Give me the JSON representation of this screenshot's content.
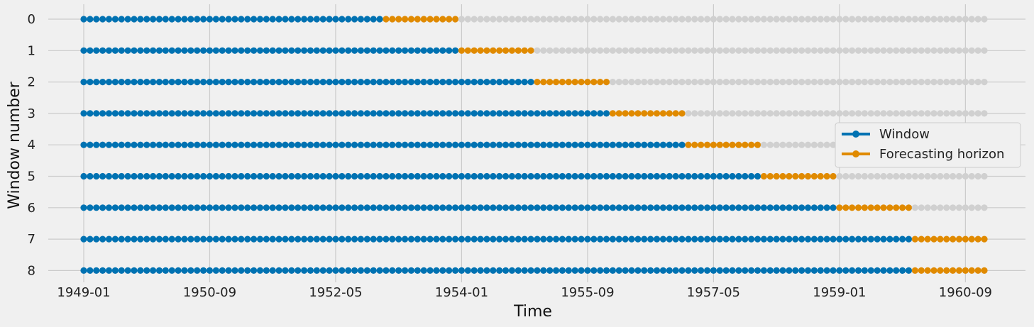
{
  "chart_data": {
    "type": "scatter",
    "title": "",
    "xlabel": "Time",
    "ylabel": "Window number",
    "x_ticks": [
      "1949-01",
      "1950-09",
      "1952-05",
      "1954-01",
      "1955-09",
      "1957-05",
      "1959-01",
      "1960-09"
    ],
    "y_ticks": [
      "0",
      "1",
      "2",
      "3",
      "4",
      "5",
      "6",
      "7",
      "8"
    ],
    "x_range": [
      "1949-01",
      "1960-12"
    ],
    "y_inverted": true,
    "grid": true,
    "legend_position": "center-right",
    "total_points": 144,
    "series": [
      {
        "name": "Window",
        "color": "#0072b2"
      },
      {
        "name": "Forecasting horizon",
        "color": "#e08a00"
      },
      {
        "color": "#d0d0d0"
      }
    ],
    "windows": [
      {
        "window": 0,
        "train_start": "1949-01",
        "train_end": "1952-12",
        "fh_start": "1953-01",
        "fh_end": "1953-12"
      },
      {
        "window": 1,
        "train_start": "1949-01",
        "train_end": "1953-12",
        "fh_start": "1954-01",
        "fh_end": "1954-12"
      },
      {
        "window": 2,
        "train_start": "1949-01",
        "train_end": "1954-12",
        "fh_start": "1955-01",
        "fh_end": "1955-12"
      },
      {
        "window": 3,
        "train_start": "1949-01",
        "train_end": "1955-12",
        "fh_start": "1956-01",
        "fh_end": "1956-12"
      },
      {
        "window": 4,
        "train_start": "1949-01",
        "train_end": "1956-12",
        "fh_start": "1957-01",
        "fh_end": "1957-12"
      },
      {
        "window": 5,
        "train_start": "1949-01",
        "train_end": "1957-12",
        "fh_start": "1958-01",
        "fh_end": "1958-12"
      },
      {
        "window": 6,
        "train_start": "1949-01",
        "train_end": "1958-12",
        "fh_start": "1959-01",
        "fh_end": "1959-12"
      },
      {
        "window": 7,
        "train_start": "1949-01",
        "train_end": "1959-12",
        "fh_start": "1960-01",
        "fh_end": "1960-12"
      },
      {
        "window": 8,
        "train_start": "1949-01",
        "train_end": "1959-12",
        "fh_start": "1960-01",
        "fh_end": "1960-12"
      }
    ]
  }
}
